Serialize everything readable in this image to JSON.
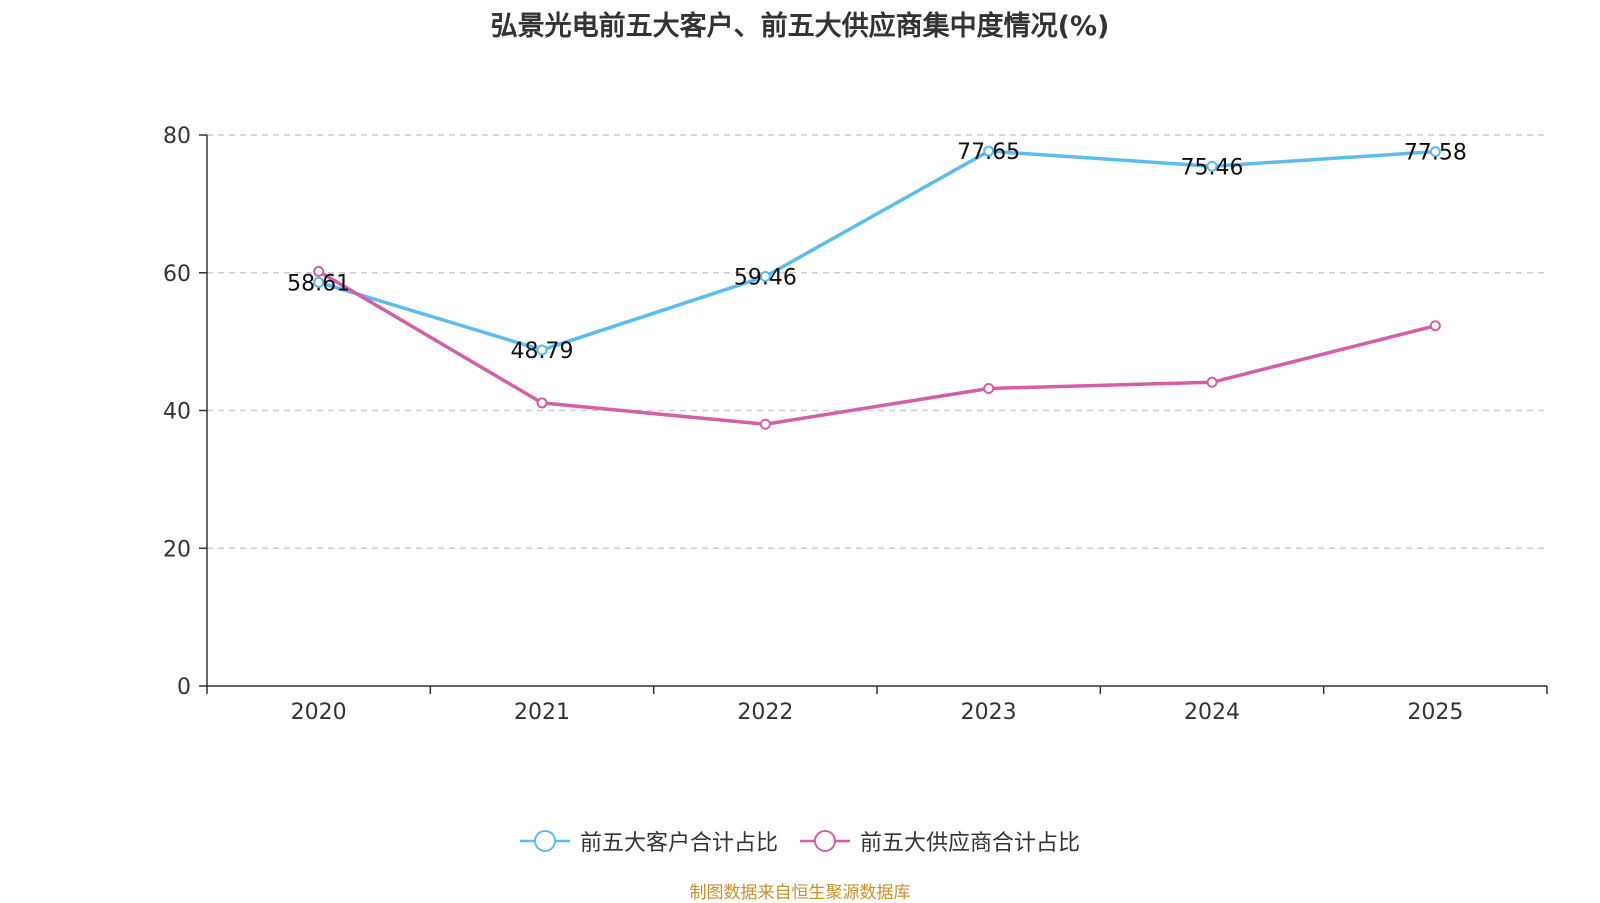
{
  "chart_data": {
    "type": "line",
    "title": "弘景光电前五大客户、前五大供应商集中度情况(%)",
    "categories": [
      "2020",
      "2021",
      "2022",
      "2023",
      "2024",
      "2025"
    ],
    "ylim": [
      0,
      80
    ],
    "yticks": [
      0,
      20,
      40,
      60,
      80
    ],
    "grid": true,
    "legend_position": "bottom",
    "series": [
      {
        "name": "前五大客户合计占比",
        "color": "#5bbcf0",
        "values": [
          58.61,
          48.79,
          59.46,
          77.65,
          75.46,
          77.58
        ],
        "labels": [
          "58.61",
          "48.79",
          "59.46",
          "77.65",
          "75.46",
          "77.58"
        ]
      },
      {
        "name": "前五大供应商合计占比",
        "color": "#d55fa5",
        "values": [
          60.2,
          41.1,
          38.0,
          43.2,
          44.1,
          52.3
        ]
      }
    ]
  },
  "legend": {
    "customers_label": "前五大客户合计占比",
    "suppliers_label": "前五大供应商合计占比"
  },
  "source": {
    "text": "制图数据来自恒生聚源数据库",
    "color": "#c8902a"
  }
}
